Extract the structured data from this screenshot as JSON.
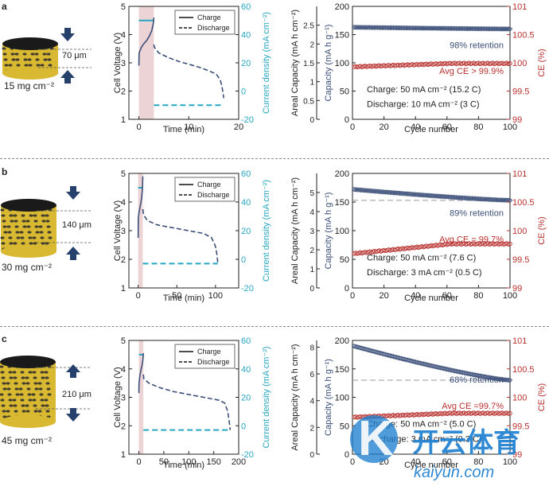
{
  "chart_data": [
    {
      "type": "line",
      "label": "a",
      "title": "",
      "loading_label": "15 mg cm⁻²",
      "thickness_label": "70 μm",
      "xlabel": "Time (min)",
      "ylabel": "Cell Voltage (V)",
      "y2label": "Current density (mA cm⁻²)",
      "xlim": [
        -2,
        20
      ],
      "ylim": [
        1,
        5
      ],
      "y2lim": [
        -20,
        60
      ],
      "xticks": [
        0,
        10,
        20
      ],
      "yticks": [
        1,
        2,
        3,
        4,
        5
      ],
      "y2ticks": [
        -20,
        0,
        20,
        40,
        60
      ],
      "legend": [
        "Charge",
        "Discharge"
      ],
      "charge_end_min": 3,
      "series": [
        {
          "name": "Charge",
          "x": [
            0,
            0.05,
            0.5,
            1.0,
            1.6,
            2.1,
            2.6,
            2.9,
            3.0
          ],
          "y": [
            2.9,
            3.35,
            3.55,
            3.68,
            3.8,
            3.95,
            4.15,
            4.4,
            4.6
          ]
        },
        {
          "name": "Discharge",
          "x": [
            3.0,
            3.1,
            4.0,
            6.0,
            8.0,
            10.0,
            12.0,
            14.0,
            15.5,
            16.3,
            16.6,
            16.8,
            17.0
          ],
          "y": [
            3.65,
            3.55,
            3.35,
            3.18,
            3.05,
            2.95,
            2.85,
            2.72,
            2.6,
            2.4,
            2.2,
            2.0,
            1.75
          ]
        },
        {
          "name": "Charge current",
          "x": [
            0,
            3
          ],
          "y": [
            50,
            50
          ]
        },
        {
          "name": "Discharge current",
          "x": [
            3,
            17
          ],
          "y": [
            -10,
            -10
          ]
        }
      ]
    },
    {
      "type": "scatter",
      "label": "a",
      "xlabel": "Cycle number",
      "ylabel": "Capacity (mA h g⁻¹)",
      "y2label": "CE (%)",
      "areal_ylabel": "Areal Capacity (mA h cm⁻²)",
      "areal_ylim": [
        0,
        3
      ],
      "areal_yticks": [
        0,
        0.5,
        1,
        1.5,
        2,
        2.5
      ],
      "xlim": [
        0,
        100
      ],
      "ylim": [
        0,
        200
      ],
      "y2lim": [
        99,
        101
      ],
      "xticks": [
        0,
        20,
        40,
        60,
        80,
        100
      ],
      "yticks": [
        0,
        50,
        100,
        150,
        200
      ],
      "y2ticks": [
        99,
        99.5,
        100,
        100.5,
        101
      ],
      "capacity_start": 163,
      "capacity_end": 160,
      "ce_start": 99.93,
      "ce_end": 99.99,
      "retention_text": "98% retention",
      "ce_text": "Avg CE > 99.9%",
      "charge_text": "Charge: 50 mA cm⁻² (15.2 C)",
      "discharge_text": "Discharge: 10 mA cm⁻² (3 C)"
    },
    {
      "type": "line",
      "label": "b",
      "loading_label": "30 mg cm⁻²",
      "thickness_label": "140 μm",
      "xlabel": "Time (min)",
      "ylabel": "Cell Voltage (V)",
      "y2label": "Current density (mA cm⁻²)",
      "xlim": [
        -12,
        130
      ],
      "ylim": [
        1,
        5
      ],
      "y2lim": [
        -20,
        60
      ],
      "xticks": [
        0,
        50,
        100
      ],
      "yticks": [
        1,
        2,
        3,
        4,
        5
      ],
      "y2ticks": [
        -20,
        0,
        20,
        40,
        60
      ],
      "legend": [
        "Charge",
        "Discharge"
      ],
      "charge_end_min": 6,
      "series": [
        {
          "name": "Charge",
          "x": [
            0,
            0.2,
            1.5,
            3,
            4.5,
            5.5,
            6
          ],
          "y": [
            2.75,
            3.45,
            3.7,
            3.9,
            4.15,
            4.45,
            4.9
          ]
        },
        {
          "name": "Discharge",
          "x": [
            6,
            7,
            12,
            25,
            45,
            65,
            85,
            95,
            100,
            102,
            103
          ],
          "y": [
            3.75,
            3.55,
            3.35,
            3.2,
            3.1,
            3.0,
            2.9,
            2.75,
            2.45,
            2.15,
            1.85
          ]
        },
        {
          "name": "Charge current",
          "x": [
            0,
            6
          ],
          "y": [
            50,
            50
          ]
        },
        {
          "name": "Discharge current",
          "x": [
            6,
            103
          ],
          "y": [
            -3,
            -3
          ]
        }
      ]
    },
    {
      "type": "scatter",
      "label": "b",
      "xlabel": "Cycle number",
      "ylabel": "Capacity (mA h g⁻¹)",
      "y2label": "CE (%)",
      "areal_ylabel": "Areal Capacity (mA h cm⁻²)",
      "areal_ylim": [
        0,
        6
      ],
      "areal_yticks": [
        0,
        1,
        2,
        3,
        4,
        5
      ],
      "xlim": [
        0,
        100
      ],
      "ylim": [
        0,
        200
      ],
      "y2lim": [
        99,
        101
      ],
      "xticks": [
        0,
        20,
        40,
        60,
        80,
        100
      ],
      "yticks": [
        0,
        50,
        100,
        150,
        200
      ],
      "y2ticks": [
        99,
        99.5,
        100,
        100.5,
        101
      ],
      "capacity_start": 172,
      "capacity_end": 153,
      "ce_start": 99.6,
      "ce_end": 99.77,
      "retention_text": "89% retention",
      "ce_text": "Avg CE = 99.7%",
      "charge_text": "Charge: 50 mA cm⁻² (7.6 C)",
      "discharge_text": "Discharge: 3 mA cm⁻² (0.5 C)"
    },
    {
      "type": "line",
      "label": "c",
      "loading_label": "45 mg cm⁻²",
      "thickness_label": "210 μm",
      "xlabel": "Time (min)",
      "ylabel": "Cell Voltage (V)",
      "y2label": "Current density (mA cm⁻²)",
      "xlim": [
        -20,
        200
      ],
      "ylim": [
        1,
        5
      ],
      "y2lim": [
        -20,
        60
      ],
      "xticks": [
        0,
        50,
        100,
        150,
        200
      ],
      "yticks": [
        1,
        2,
        3,
        4,
        5
      ],
      "y2ticks": [
        -20,
        0,
        20,
        40,
        60
      ],
      "legend": [
        "Charge",
        "Discharge"
      ],
      "charge_end_min": 9,
      "series": [
        {
          "name": "Charge",
          "x": [
            0,
            0.3,
            2,
            4,
            6,
            8,
            9
          ],
          "y": [
            3.15,
            3.5,
            3.75,
            3.95,
            4.1,
            4.3,
            4.55
          ]
        },
        {
          "name": "Discharge",
          "x": [
            9,
            10,
            20,
            40,
            70,
            100,
            130,
            160,
            172,
            178,
            181,
            183
          ],
          "y": [
            3.8,
            3.65,
            3.5,
            3.35,
            3.2,
            3.1,
            3.0,
            2.9,
            2.8,
            2.5,
            2.15,
            1.85
          ]
        },
        {
          "name": "Charge current",
          "x": [
            0,
            9
          ],
          "y": [
            50,
            50
          ]
        },
        {
          "name": "Discharge current",
          "x": [
            9,
            183
          ],
          "y": [
            -3,
            -3
          ]
        }
      ]
    },
    {
      "type": "scatter",
      "label": "c",
      "xlabel": "Cycle number",
      "ylabel": "Capacity (mA h g⁻¹)",
      "y2label": "CE (%)",
      "areal_ylabel": "Areal Capacity (mA h cm⁻²)",
      "areal_ylim": [
        0,
        8.5
      ],
      "areal_yticks": [
        0,
        2,
        4,
        6,
        8
      ],
      "xlim": [
        0,
        100
      ],
      "ylim": [
        0,
        200
      ],
      "y2lim": [
        99,
        101
      ],
      "xticks": [
        0,
        20,
        40,
        60,
        80,
        100
      ],
      "yticks": [
        0,
        50,
        100,
        150,
        200
      ],
      "y2ticks": [
        99,
        99.5,
        100,
        100.5,
        101
      ],
      "capacity_start": 190,
      "capacity_end": 130,
      "ce_start": 99.65,
      "ce_end": 99.72,
      "retention_text": "68% retention",
      "ce_text": "Avg CE =99.7%",
      "charge_text": "Charge: 50 mA cm⁻² (5.0 C)",
      "discharge_text": "Discharge: 3 mA cm⁻² (0.3 C)"
    }
  ],
  "watermark": {
    "cn": "开云体育",
    "en": "kaiyun.com"
  },
  "colors": {
    "capacity": "#3b4e78",
    "ce": "#b8312f",
    "current": "#28a7c2",
    "shade": "#ecd3d6",
    "arrow": "#24406b",
    "electrode": "#d9b832"
  }
}
